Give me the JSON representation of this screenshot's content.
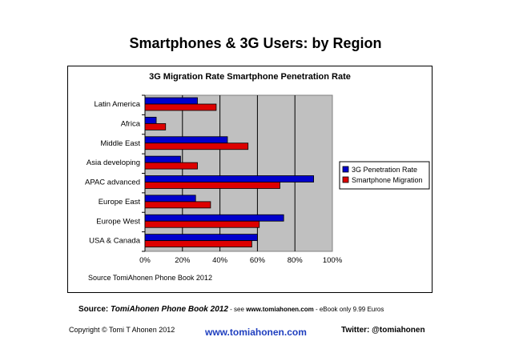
{
  "slide": {
    "title": "Smartphones & 3G Users: by Region"
  },
  "chart_data": {
    "type": "bar",
    "orientation": "horizontal",
    "title": "3G Migration Rate Smartphone Penetration Rate",
    "categories": [
      "Latin America",
      "Africa",
      "Middle East",
      "Asia developing",
      "APAC advanced",
      "Europe East",
      "Europe West",
      "USA & Canada"
    ],
    "series": [
      {
        "name": "3G Penetration Rate",
        "color": "#0000cc",
        "values": [
          28,
          6,
          44,
          19,
          90,
          27,
          74,
          60
        ]
      },
      {
        "name": "Smartphone Migration",
        "color": "#dd0000",
        "values": [
          38,
          11,
          55,
          28,
          72,
          35,
          61,
          57
        ]
      }
    ],
    "xlim": [
      0,
      100
    ],
    "xticks": [
      "0%",
      "20%",
      "40%",
      "60%",
      "80%",
      "100%"
    ],
    "grid": true,
    "plot_background": "#c0c0c0",
    "legend_position": "right",
    "source_note": "Source TomiAhonen Phone Book 2012"
  },
  "footer": {
    "source_label": "Source:",
    "book_title": "TomiAhonen Phone Book 2012",
    "see_prefix": " - see ",
    "see_url": "www.tomiahonen.com",
    "ebook_note": " - eBook only 9.99 Euros",
    "copyright": "Copyright © Tomi T Ahonen 2012",
    "website": "www.tomiahonen.com",
    "twitter": "Twitter: @tomiahonen"
  }
}
